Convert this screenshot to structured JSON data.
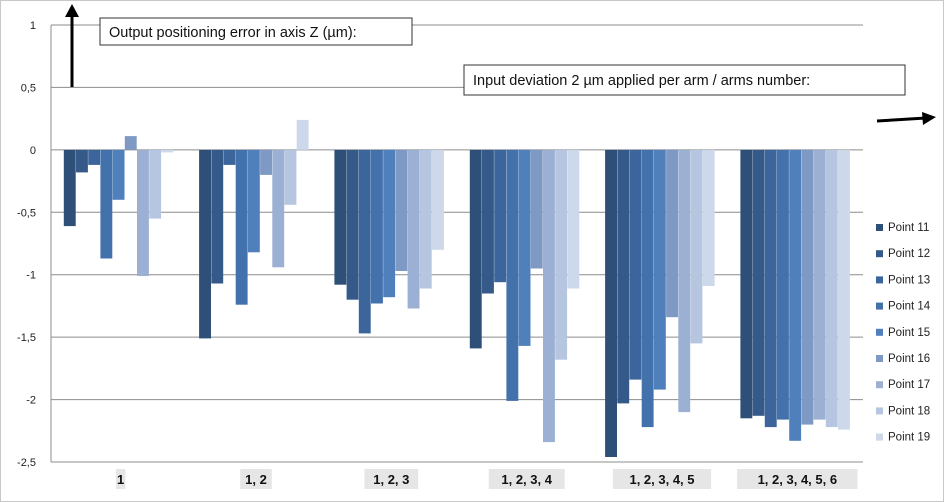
{
  "chart_data": {
    "type": "bar",
    "ylabel_box": "Output positioning error in axis Z (µm):",
    "xlabel_box": "Input deviation 2 µm applied per arm / arms number:",
    "ylim": [
      -2.5,
      1
    ],
    "yticks": [
      "1",
      "0,5",
      "0",
      "-0,5",
      "-1",
      "-1,5",
      "-2",
      "-2,5"
    ],
    "ytick_values": [
      1,
      0.5,
      0,
      -0.5,
      -1,
      -1.5,
      -2,
      -2.5
    ],
    "grid": true,
    "legend_position": "right",
    "categories": [
      "1",
      "1, 2",
      "1, 2, 3",
      "1, 2, 3, 4",
      "1, 2, 3, 4, 5",
      "1, 2, 3, 4, 5, 6"
    ],
    "series": [
      {
        "name": "Point 11",
        "color": "#2e4f78",
        "values": [
          -0.61,
          -1.51,
          -1.08,
          -1.59,
          -2.46,
          -2.15
        ]
      },
      {
        "name": "Point 12",
        "color": "#355a8a",
        "values": [
          -0.18,
          -1.07,
          -1.2,
          -1.15,
          -2.03,
          -2.13
        ]
      },
      {
        "name": "Point 13",
        "color": "#3b659b",
        "values": [
          -0.12,
          -0.12,
          -1.47,
          -1.06,
          -1.84,
          -2.22
        ]
      },
      {
        "name": "Point 14",
        "color": "#4371ab",
        "values": [
          -0.87,
          -1.24,
          -1.23,
          -2.01,
          -2.22,
          -2.16
        ]
      },
      {
        "name": "Point 15",
        "color": "#4f80bb",
        "values": [
          -0.4,
          -0.82,
          -1.18,
          -1.57,
          -1.92,
          -2.33
        ]
      },
      {
        "name": "Point 16",
        "color": "#7f99c5",
        "values": [
          0.11,
          -0.2,
          -0.97,
          -0.95,
          -1.34,
          -2.2
        ]
      },
      {
        "name": "Point 17",
        "color": "#9bb0d3",
        "values": [
          -1.01,
          -0.94,
          -1.27,
          -2.34,
          -2.1,
          -2.16
        ]
      },
      {
        "name": "Point 18",
        "color": "#b6c6e1",
        "values": [
          -0.55,
          -0.44,
          -1.11,
          -1.68,
          -1.55,
          -2.22
        ]
      },
      {
        "name": "Point 19",
        "color": "#cdd8eb",
        "values": [
          -0.02,
          0.24,
          -0.8,
          -1.11,
          -1.09,
          -2.24
        ]
      }
    ]
  }
}
